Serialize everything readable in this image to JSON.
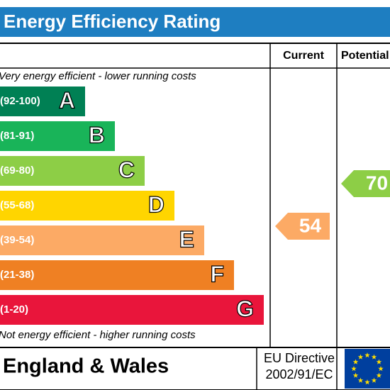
{
  "header": {
    "title": "Energy Efficiency Rating"
  },
  "columns": [
    "Current",
    "Potential"
  ],
  "top_note": "Very energy efficient - lower running costs",
  "bottom_note": "Not energy efficient - higher running costs",
  "bands": [
    {
      "range": "(92-100)",
      "letter": "A",
      "color": "#008054"
    },
    {
      "range": "(81-91)",
      "letter": "B",
      "color": "#19b459"
    },
    {
      "range": "(69-80)",
      "letter": "C",
      "color": "#8dce46"
    },
    {
      "range": "(55-68)",
      "letter": "D",
      "color": "#ffd500"
    },
    {
      "range": "(39-54)",
      "letter": "E",
      "color": "#fcaa65"
    },
    {
      "range": "(21-38)",
      "letter": "F",
      "color": "#ef8023"
    },
    {
      "range": "(1-20)",
      "letter": "G",
      "color": "#e9153b"
    }
  ],
  "current": {
    "value": 54,
    "color": "#fcaa65"
  },
  "potential": {
    "value": 70,
    "color": "#8dce46"
  },
  "footer": {
    "region": "England & Wales",
    "directive": [
      "EU Directive",
      "2002/91/EC"
    ]
  }
}
